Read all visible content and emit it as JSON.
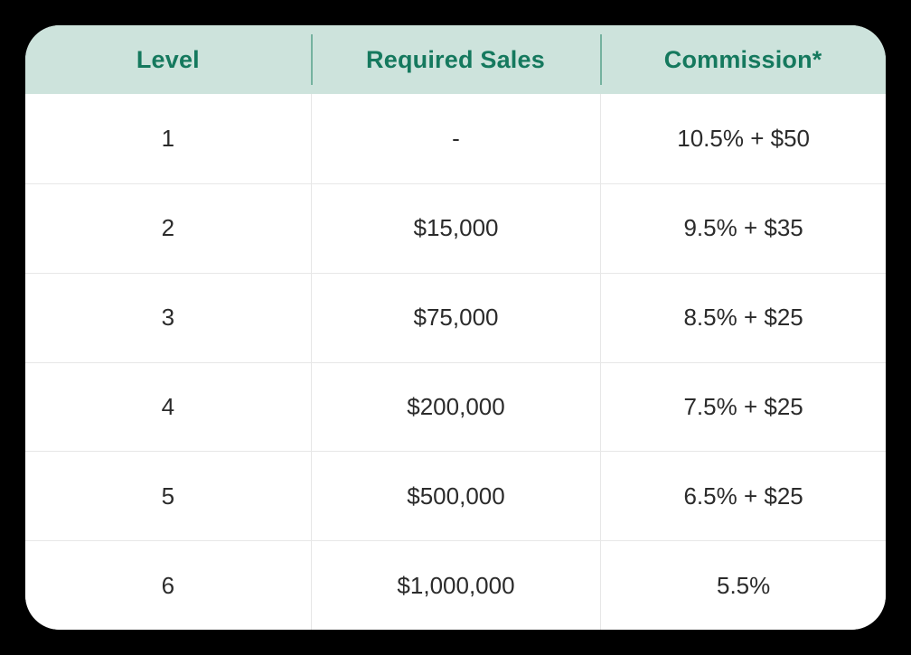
{
  "table": {
    "columns": [
      "Level",
      "Required Sales",
      "Commission*"
    ],
    "rows": [
      [
        "1",
        "-",
        "10.5% + $50"
      ],
      [
        "2",
        "$15,000",
        "9.5% + $35"
      ],
      [
        "3",
        "$75,000",
        "8.5% + $25"
      ],
      [
        "4",
        "$200,000",
        "7.5% + $25"
      ],
      [
        "5",
        "$500,000",
        "6.5% + $25"
      ],
      [
        "6",
        "$1,000,000",
        "5.5%"
      ]
    ]
  },
  "colors": {
    "page_bg": "#000000",
    "card_bg": "#ffffff",
    "header_bg": "#cde3dc",
    "header_text": "#15795e",
    "body_text": "#2b2b2b",
    "divider": "#e7e7e7"
  },
  "chart_data": {
    "type": "table",
    "title": "Commission levels table",
    "columns": [
      "Level",
      "Required Sales",
      "Commission*"
    ],
    "rows": [
      {
        "level": 1,
        "required_sales": null,
        "commission": "10.5% + $50"
      },
      {
        "level": 2,
        "required_sales": 15000,
        "commission": "9.5% + $35"
      },
      {
        "level": 3,
        "required_sales": 75000,
        "commission": "8.5% + $25"
      },
      {
        "level": 4,
        "required_sales": 200000,
        "commission": "7.5% + $25"
      },
      {
        "level": 5,
        "required_sales": 500000,
        "commission": "6.5% + $25"
      },
      {
        "level": 6,
        "required_sales": 1000000,
        "commission": "5.5%"
      }
    ]
  }
}
